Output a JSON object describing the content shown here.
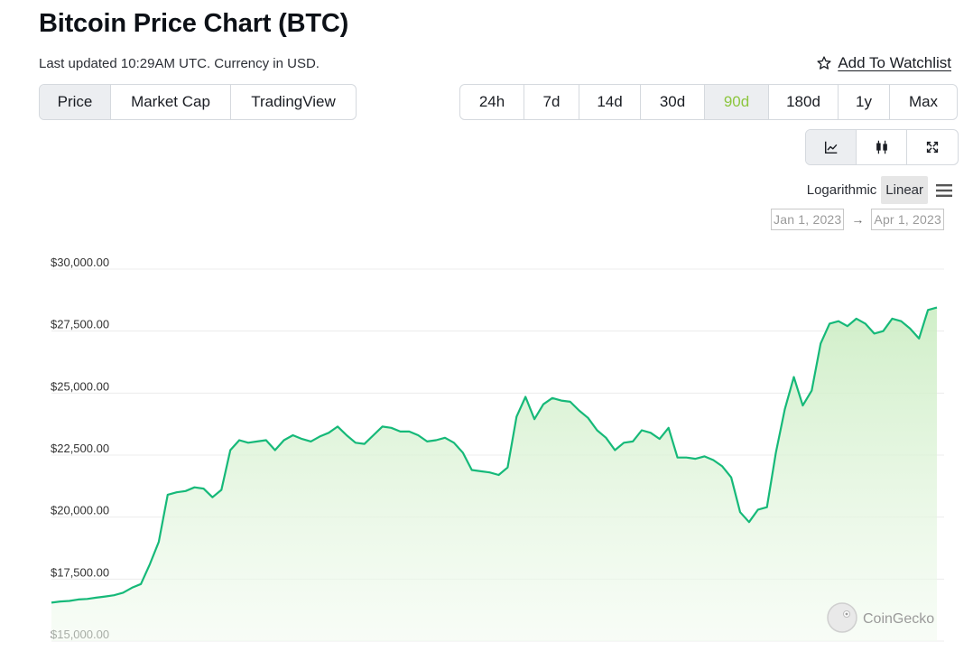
{
  "header": {
    "title": "Bitcoin Price Chart (BTC)",
    "subtitle": "Last updated 10:29AM UTC. Currency in USD.",
    "watchlist_label": "Add To Watchlist"
  },
  "chart_types": [
    {
      "label": "Price",
      "active": true
    },
    {
      "label": "Market Cap",
      "active": false
    },
    {
      "label": "TradingView",
      "active": false
    }
  ],
  "ranges": [
    {
      "label": "24h",
      "active": false
    },
    {
      "label": "7d",
      "active": false
    },
    {
      "label": "14d",
      "active": false
    },
    {
      "label": "30d",
      "active": false
    },
    {
      "label": "90d",
      "active": true
    },
    {
      "label": "180d",
      "active": false
    },
    {
      "label": "1y",
      "active": false
    },
    {
      "label": "Max",
      "active": false
    }
  ],
  "view_modes": [
    {
      "icon": "line-chart-icon",
      "active": true
    },
    {
      "icon": "candlestick-icon",
      "active": false
    },
    {
      "icon": "expand-icon",
      "active": false
    }
  ],
  "scale": {
    "logarithmic": "Logarithmic",
    "linear": "Linear",
    "active": "linear"
  },
  "date_range": {
    "from": "Jan 1, 2023",
    "arrow": "→",
    "to": "Apr 1, 2023"
  },
  "watermark": "CoinGecko",
  "colors": {
    "line": "#16b979",
    "fill_top": "#c8ecbf",
    "fill_bottom": "#f3fbf1",
    "active_range": "#8dc63f",
    "grid": "#ececec"
  },
  "chart_data": {
    "type": "area",
    "x_start": "Jan 1, 2023",
    "x_end": "Apr 1, 2023",
    "ylim": [
      15000,
      30000
    ],
    "y_ticks": [
      {
        "value": 30000,
        "label": "$30,000.00"
      },
      {
        "value": 27500,
        "label": "$27,500.00"
      },
      {
        "value": 25000,
        "label": "$25,000.00"
      },
      {
        "value": 22500,
        "label": "$22,500.00"
      },
      {
        "value": 20000,
        "label": "$20,000.00"
      },
      {
        "value": 17500,
        "label": "$17,500.00"
      },
      {
        "value": 15000,
        "label": "$15,000.00"
      }
    ],
    "grid": true,
    "series": [
      {
        "values": [
          16550,
          16600,
          16620,
          16680,
          16700,
          16750,
          16800,
          16850,
          16950,
          17150,
          17300,
          18100,
          19000,
          20900,
          21000,
          21050,
          21200,
          21150,
          20800,
          21100,
          22700,
          23100,
          23000,
          23050,
          23100,
          22700,
          23100,
          23300,
          23150,
          23050,
          23250,
          23400,
          23650,
          23300,
          23000,
          22950,
          23300,
          23650,
          23600,
          23450,
          23450,
          23300,
          23050,
          23100,
          23200,
          23000,
          22600,
          21900,
          21850,
          21800,
          21700,
          22000,
          24050,
          24850,
          23950,
          24550,
          24800,
          24700,
          24650,
          24300,
          24000,
          23500,
          23200,
          22700,
          23000,
          23050,
          23500,
          23400,
          23150,
          23600,
          22400,
          22400,
          22350,
          22450,
          22300,
          22050,
          21600,
          20200,
          19800,
          20300,
          20400,
          22600,
          24350,
          25650,
          24500,
          25100,
          27000,
          27800,
          27900,
          27700,
          28000,
          27800,
          27400,
          27500,
          28000,
          27900,
          27600,
          27200,
          28350,
          28450
        ]
      }
    ]
  }
}
